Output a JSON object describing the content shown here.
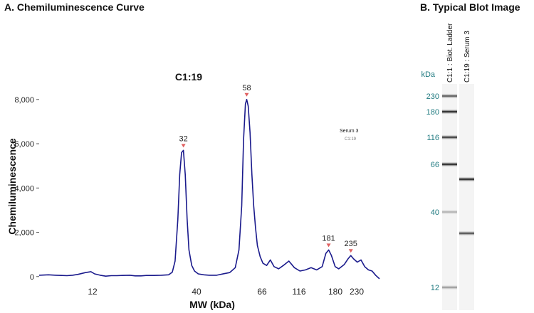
{
  "panels": {
    "a_title": "A. Chemiluminescence Curve",
    "b_title": "B.   Typical Blot Image"
  },
  "colors": {
    "trace": "#1a1a8c",
    "peak_marker": "#e06060",
    "kda_text": "#1f7a80"
  },
  "chart_data": [
    {
      "type": "line",
      "title": "C1:19",
      "xlabel": "MW (kDa)",
      "ylabel": "Chemiluminescence",
      "ylim": [
        -200,
        8700
      ],
      "yticks": [
        0,
        2000,
        4000,
        6000,
        8000
      ],
      "ytick_labels": [
        "0",
        "2,000",
        "4,000",
        "6,000",
        "8,000"
      ],
      "xticks": [
        12,
        40,
        66,
        116,
        180,
        230
      ],
      "grid": false,
      "legend": {
        "placement": "top-right",
        "name": "Serum 3",
        "sub": "C1:19"
      },
      "peaks": [
        {
          "label": "32",
          "value": 5700
        },
        {
          "label": "58",
          "value": 8000
        },
        {
          "label": "181",
          "value": 1200
        },
        {
          "label": "235",
          "value": 950
        }
      ],
      "series": [
        {
          "name": "Serum 3",
          "points": [
            [
              0.0,
              60
            ],
            [
              0.5,
              80
            ],
            [
              0.9,
              60
            ],
            [
              1.2,
              50
            ],
            [
              1.5,
              40
            ],
            [
              1.8,
              60
            ],
            [
              2.1,
              100
            ],
            [
              2.5,
              180
            ],
            [
              2.8,
              220
            ],
            [
              3.0,
              120
            ],
            [
              3.3,
              60
            ],
            [
              3.6,
              20
            ],
            [
              3.9,
              40
            ],
            [
              4.2,
              40
            ],
            [
              4.5,
              50
            ],
            [
              4.9,
              60
            ],
            [
              5.2,
              30
            ],
            [
              5.5,
              30
            ],
            [
              5.8,
              50
            ],
            [
              6.2,
              50
            ],
            [
              6.6,
              60
            ],
            [
              7.0,
              80
            ],
            [
              7.2,
              200
            ],
            [
              7.35,
              700
            ],
            [
              7.5,
              2600
            ],
            [
              7.6,
              4600
            ],
            [
              7.7,
              5600
            ],
            [
              7.8,
              5700
            ],
            [
              7.9,
              4600
            ],
            [
              8.0,
              2600
            ],
            [
              8.1,
              1200
            ],
            [
              8.25,
              500
            ],
            [
              8.4,
              250
            ],
            [
              8.6,
              120
            ],
            [
              8.9,
              80
            ],
            [
              9.2,
              60
            ],
            [
              9.6,
              60
            ],
            [
              10.0,
              130
            ],
            [
              10.3,
              180
            ],
            [
              10.6,
              400
            ],
            [
              10.8,
              1200
            ],
            [
              10.95,
              3200
            ],
            [
              11.05,
              6200
            ],
            [
              11.15,
              7800
            ],
            [
              11.22,
              8000
            ],
            [
              11.3,
              7700
            ],
            [
              11.4,
              6500
            ],
            [
              11.5,
              4600
            ],
            [
              11.6,
              3200
            ],
            [
              11.7,
              2200
            ],
            [
              11.8,
              1400
            ],
            [
              11.95,
              900
            ],
            [
              12.1,
              600
            ],
            [
              12.3,
              500
            ],
            [
              12.5,
              750
            ],
            [
              12.7,
              450
            ],
            [
              12.95,
              350
            ],
            [
              13.2,
              500
            ],
            [
              13.5,
              700
            ],
            [
              13.8,
              400
            ],
            [
              14.1,
              250
            ],
            [
              14.4,
              300
            ],
            [
              14.7,
              400
            ],
            [
              15.0,
              300
            ],
            [
              15.3,
              450
            ],
            [
              15.5,
              1050
            ],
            [
              15.65,
              1200
            ],
            [
              15.8,
              950
            ],
            [
              16.0,
              450
            ],
            [
              16.2,
              350
            ],
            [
              16.5,
              550
            ],
            [
              16.7,
              800
            ],
            [
              16.85,
              950
            ],
            [
              17.0,
              800
            ],
            [
              17.2,
              650
            ],
            [
              17.4,
              750
            ],
            [
              17.6,
              450
            ],
            [
              17.8,
              300
            ],
            [
              18.0,
              250
            ],
            [
              18.2,
              50
            ],
            [
              18.4,
              -100
            ]
          ]
        }
      ]
    }
  ],
  "blot": {
    "kda_header": "kDa",
    "lanes": [
      {
        "label": "C1:1 : Biot. Ladder"
      },
      {
        "label": "C1:19 : Serum 3"
      }
    ],
    "ladder_bands": [
      {
        "kda": "230",
        "intensity": 0.75
      },
      {
        "kda": "180",
        "intensity": 1.0
      },
      {
        "kda": "116",
        "intensity": 0.9
      },
      {
        "kda": "66",
        "intensity": 1.0
      },
      {
        "kda": "40",
        "intensity": 0.35
      },
      {
        "kda": "12",
        "intensity": 0.45
      }
    ],
    "sample_bands": [
      {
        "kda": "58",
        "intensity": 1.0
      },
      {
        "kda": "32",
        "intensity": 0.8
      }
    ]
  }
}
